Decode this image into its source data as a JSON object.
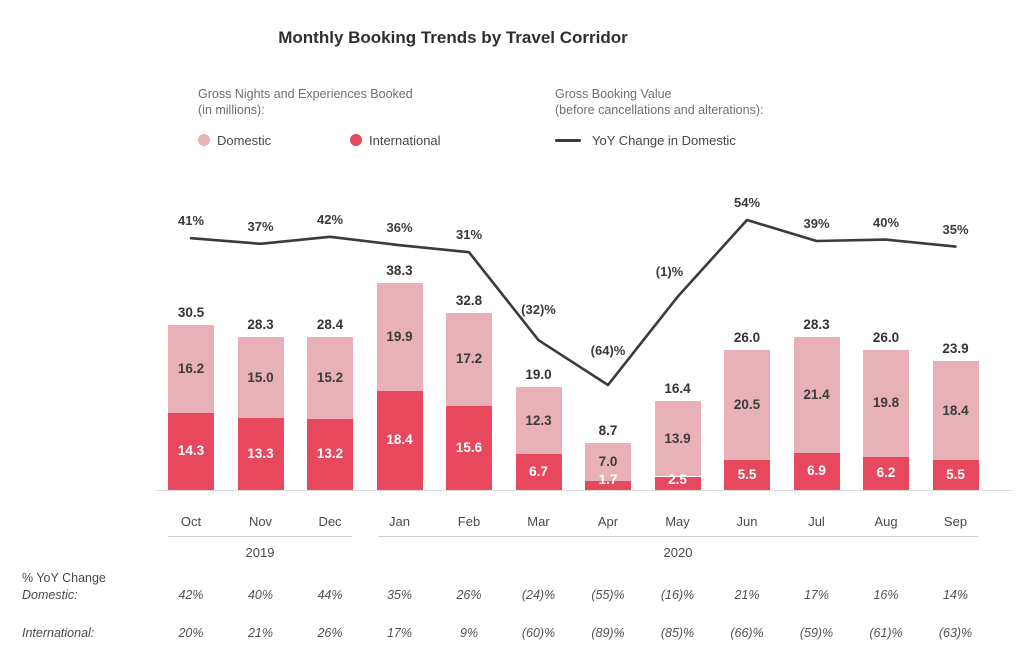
{
  "title": "Monthly Booking Trends by Travel Corridor",
  "colors": {
    "domestic": "#E7B1B7",
    "international": "#E8485E",
    "line": "#3B3B3B"
  },
  "legend": {
    "bars_title_line1": "Gross Nights and Experiences Booked",
    "bars_title_line2": "(in millions):",
    "domestic_label": "Domestic",
    "international_label": "International",
    "line_title_line1": "Gross Booking Value",
    "line_title_line2": "(before cancellations and alterations):",
    "line_label": "YoY Change in Domestic"
  },
  "chart_data": {
    "type": "bar",
    "subtype": "stacked-bar-with-line",
    "categories": [
      "Oct",
      "Nov",
      "Dec",
      "Jan",
      "Feb",
      "Mar",
      "Apr",
      "May",
      "Jun",
      "Jul",
      "Aug",
      "Sep"
    ],
    "year_groups": [
      {
        "label": "2019",
        "months": [
          "Oct",
          "Nov",
          "Dec"
        ]
      },
      {
        "label": "2020",
        "months": [
          "Jan",
          "Feb",
          "Mar",
          "Apr",
          "May",
          "Jun",
          "Jul",
          "Aug",
          "Sep"
        ]
      }
    ],
    "series": [
      {
        "name": "Domestic",
        "values": [
          16.2,
          15.0,
          15.2,
          19.9,
          17.2,
          12.3,
          7.0,
          13.9,
          20.5,
          21.4,
          19.8,
          18.4
        ],
        "labels": [
          "16.2",
          "15.0",
          "15.2",
          "19.9",
          "17.2",
          "12.3",
          "7.0",
          "13.9",
          "20.5",
          "21.4",
          "19.8",
          "18.4"
        ]
      },
      {
        "name": "International",
        "values": [
          14.3,
          13.3,
          13.2,
          18.4,
          15.6,
          6.7,
          1.7,
          2.5,
          5.5,
          6.9,
          6.2,
          5.5
        ],
        "labels": [
          "14.3",
          "13.3",
          "13.2",
          "18.4",
          "15.6",
          "6.7",
          "1.7",
          "2.5",
          "5.5",
          "6.9",
          "6.2",
          "5.5"
        ]
      }
    ],
    "totals": [
      30.5,
      28.3,
      28.4,
      38.3,
      32.8,
      19.0,
      8.7,
      16.4,
      26.0,
      28.3,
      26.0,
      23.9
    ],
    "totals_labels": [
      "30.5",
      "28.3",
      "28.4",
      "38.3",
      "32.8",
      "19.0",
      "8.7",
      "16.4",
      "26.0",
      "28.3",
      "26.0",
      "23.9"
    ],
    "line": {
      "name": "YoY Change in Domestic",
      "values": [
        41,
        37,
        42,
        36,
        31,
        -32,
        -64,
        -1,
        54,
        39,
        40,
        35
      ],
      "labels": [
        "41%",
        "37%",
        "42%",
        "36%",
        "31%",
        "(32)%",
        "(64)%",
        "(1)%",
        "54%",
        "39%",
        "40%",
        "35%"
      ]
    },
    "ylim": [
      0,
      40
    ],
    "grid": false,
    "legend_position": "top"
  },
  "table": {
    "row_header_line1": "% YoY Change",
    "row_header_domestic": "Domestic:",
    "row_header_international": "International:",
    "rows": [
      {
        "name": "Domestic",
        "values": [
          "42%",
          "40%",
          "44%",
          "35%",
          "26%",
          "(24)%",
          "(55)%",
          "(16)%",
          "21%",
          "17%",
          "16%",
          "14%"
        ]
      },
      {
        "name": "International",
        "values": [
          "20%",
          "21%",
          "26%",
          "17%",
          "9%",
          "(60)%",
          "(89)%",
          "(85)%",
          "(66)%",
          "(59)%",
          "(61)%",
          "(63)%"
        ]
      }
    ]
  }
}
